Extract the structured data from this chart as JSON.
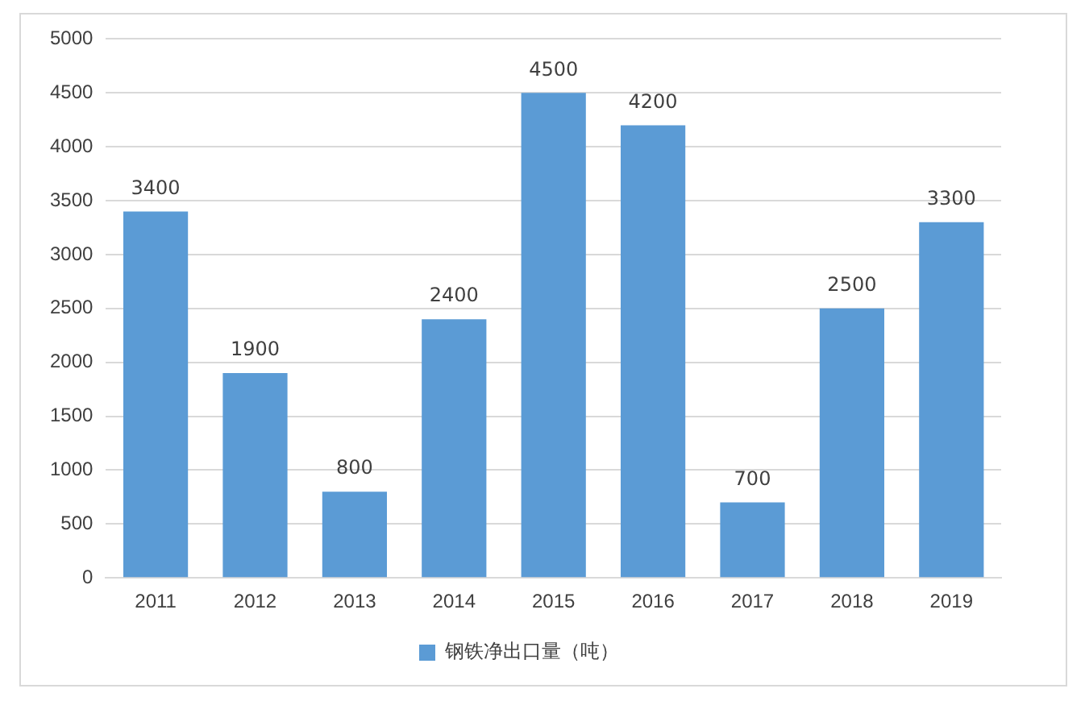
{
  "chart_data": {
    "type": "bar",
    "categories": [
      "2011",
      "2012",
      "2013",
      "2014",
      "2015",
      "2016",
      "2017",
      "2018",
      "2019"
    ],
    "series": [
      {
        "name": "钢铁净出口量（吨）",
        "color": "#5b9bd5",
        "values": [
          3400,
          1900,
          800,
          2400,
          4500,
          4200,
          700,
          2500,
          3300
        ]
      }
    ],
    "ylim": [
      0,
      5000
    ],
    "yticks": [
      0,
      500,
      1000,
      1500,
      2000,
      2500,
      3000,
      3500,
      4000,
      4500,
      5000
    ],
    "grid": "y",
    "legend": "bottom",
    "data_labels": true
  }
}
